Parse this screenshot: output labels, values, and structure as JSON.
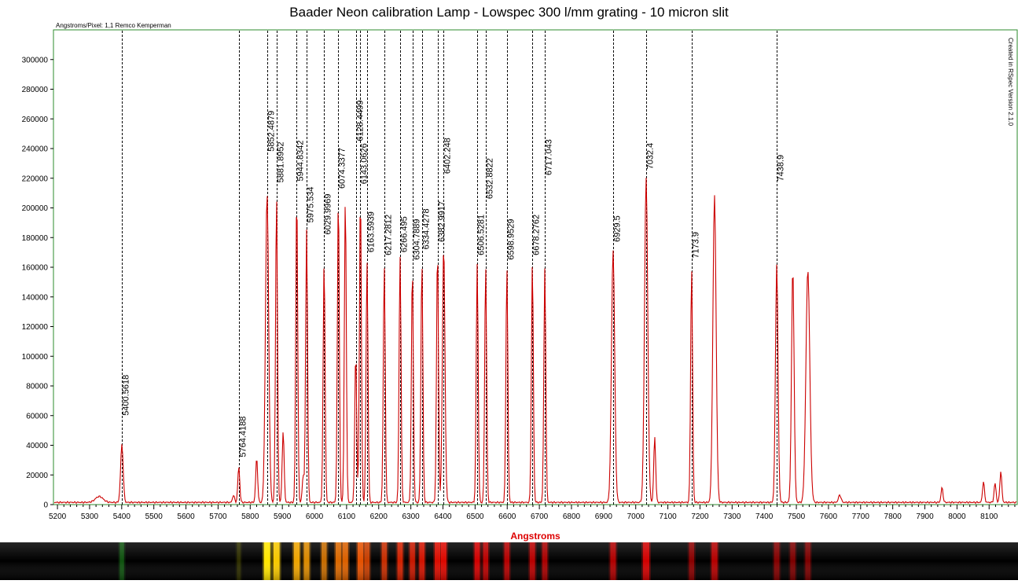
{
  "chart_data": {
    "type": "line",
    "title": "Baader Neon calibration Lamp - Lowspec 300 l/mm grating - 10 micron slit",
    "subtitle_left": "Angstroms/Pixel: 1,1 Remco Kemperman",
    "side_note": "Created in RSpec Version 2.1.0",
    "xlabel": "Angstroms",
    "ylabel": "",
    "xlim": [
      5190,
      8185
    ],
    "ylim": [
      0,
      320000
    ],
    "x_ticks": [
      5200,
      5300,
      5400,
      5500,
      5600,
      5700,
      5800,
      5900,
      6000,
      6100,
      6200,
      6300,
      6400,
      6500,
      6600,
      6700,
      6800,
      6900,
      7000,
      7100,
      7200,
      7300,
      7400,
      7500,
      7600,
      7700,
      7800,
      7900,
      8000,
      8100
    ],
    "y_ticks": [
      0,
      20000,
      40000,
      60000,
      80000,
      100000,
      120000,
      140000,
      160000,
      180000,
      200000,
      220000,
      240000,
      260000,
      280000,
      300000
    ],
    "grid": false,
    "series": [
      {
        "color": "#cc0000",
        "baseline": 1500,
        "peaks": [
          [
            5330,
            4000,
            12
          ],
          [
            5400.5618,
            39000,
            4
          ],
          [
            5748,
            5000,
            3
          ],
          [
            5764.4188,
            24000,
            3
          ],
          [
            5820.1,
            30000,
            3
          ],
          [
            5852.4879,
            208000,
            5
          ],
          [
            5881.8952,
            206000,
            3
          ],
          [
            5902.5,
            48000,
            3
          ],
          [
            5944.8342,
            208000,
            3
          ],
          [
            5965,
            18000,
            3
          ],
          [
            5975.534,
            184000,
            3
          ],
          [
            6029.9969,
            162000,
            3
          ],
          [
            6074.3377,
            206000,
            3
          ],
          [
            6096.1,
            205000,
            3
          ],
          [
            6128.4499,
            100000,
            3
          ],
          [
            6143.0626,
            208000,
            3
          ],
          [
            6163.5939,
            162000,
            3
          ],
          [
            6217.2812,
            159000,
            3
          ],
          [
            6266.495,
            166000,
            3
          ],
          [
            6304.7889,
            158000,
            3
          ],
          [
            6334.4278,
            162000,
            3
          ],
          [
            6382.9917,
            171000,
            3
          ],
          [
            6402.248,
            172000,
            4
          ],
          [
            6506.5281,
            161000,
            3
          ],
          [
            6532.8822,
            159000,
            3
          ],
          [
            6598.9529,
            158000,
            3
          ],
          [
            6678.2762,
            161000,
            3
          ],
          [
            6717.043,
            158000,
            3
          ],
          [
            6929.5,
            170000,
            5
          ],
          [
            7032.4,
            219000,
            5
          ],
          [
            7059.1,
            44000,
            3
          ],
          [
            7173.9,
            158000,
            3
          ],
          [
            7245.2,
            207000,
            5
          ],
          [
            7438.9,
            161000,
            4
          ],
          [
            7488.9,
            158000,
            4
          ],
          [
            7535.8,
            157000,
            6
          ],
          [
            7635,
            5000,
            4
          ],
          [
            7953.4,
            10000,
            3
          ],
          [
            8082.5,
            14000,
            3
          ],
          [
            8118.5,
            13000,
            3
          ],
          [
            8136.4,
            21000,
            3
          ]
        ]
      }
    ],
    "annotations": [
      {
        "x": 5400.5618,
        "label": "5400.5618",
        "y": 60000
      },
      {
        "x": 5764.4188,
        "label": "5764.4188",
        "y": 32000
      },
      {
        "x": 5852.4879,
        "label": "5852.4879",
        "y": 238000
      },
      {
        "x": 5881.8952,
        "label": "5881.8952",
        "y": 217000
      },
      {
        "x": 5944.8342,
        "label": "5944.8342",
        "y": 218000
      },
      {
        "x": 5975.534,
        "label": "5975.534",
        "y": 190000
      },
      {
        "x": 6029.9969,
        "label": "6029.9969",
        "y": 182000
      },
      {
        "x": 6074.3377,
        "label": "6074.3377",
        "y": 213000
      },
      {
        "x": 6128.4499,
        "label": "6128.4499",
        "y": 245000
      },
      {
        "x": 6143.0626,
        "label": "6143.0626",
        "y": 216000
      },
      {
        "x": 6163.5939,
        "label": "6163.5939",
        "y": 170000
      },
      {
        "x": 6217.2812,
        "label": "6217.2812",
        "y": 168000
      },
      {
        "x": 6266.495,
        "label": "6266.495",
        "y": 170000
      },
      {
        "x": 6304.7889,
        "label": "6304.7889",
        "y": 165000
      },
      {
        "x": 6334.4278,
        "label": "6334.4278",
        "y": 172000
      },
      {
        "x": 6382.9917,
        "label": "6382.9917",
        "y": 177000
      },
      {
        "x": 6402.248,
        "label": "6402.248",
        "y": 223000
      },
      {
        "x": 6506.5281,
        "label": "6506.5281",
        "y": 168000
      },
      {
        "x": 6532.8822,
        "label": "6532.8822",
        "y": 206000
      },
      {
        "x": 6598.9529,
        "label": "6598.9529",
        "y": 165000
      },
      {
        "x": 6678.2762,
        "label": "6678.2762",
        "y": 168000
      },
      {
        "x": 6717.043,
        "label": "6717.043",
        "y": 222000
      },
      {
        "x": 6929.5,
        "label": "6929.5",
        "y": 177000
      },
      {
        "x": 7032.4,
        "label": "7032.4",
        "y": 226000
      },
      {
        "x": 7173.9,
        "label": "7173.9",
        "y": 166000
      },
      {
        "x": 7438.9,
        "label": "7438.9",
        "y": 218000
      }
    ],
    "spectrum_strip": {
      "background": "#000000",
      "bands": [
        {
          "x": 5400.5618,
          "color": "#1a8a1a",
          "strength": 0.5
        },
        {
          "x": 5764.4188,
          "color": "#6a6a00",
          "strength": 0.35
        },
        {
          "x": 5852.4879,
          "color": "#ffe600",
          "strength": 1.0
        },
        {
          "x": 5881.8952,
          "color": "#ffd000",
          "strength": 0.95
        },
        {
          "x": 5944.8342,
          "color": "#ffb000",
          "strength": 0.9
        },
        {
          "x": 5975.534,
          "color": "#ffa000",
          "strength": 0.8
        },
        {
          "x": 6029.9969,
          "color": "#ff8a00",
          "strength": 0.7
        },
        {
          "x": 6074.3377,
          "color": "#ff7a00",
          "strength": 0.8
        },
        {
          "x": 6096.1,
          "color": "#ff7000",
          "strength": 0.8
        },
        {
          "x": 6143.0626,
          "color": "#ff5a00",
          "strength": 0.85
        },
        {
          "x": 6163.5939,
          "color": "#ff5000",
          "strength": 0.7
        },
        {
          "x": 6217.2812,
          "color": "#ff3a00",
          "strength": 0.7
        },
        {
          "x": 6266.495,
          "color": "#ff2a00",
          "strength": 0.75
        },
        {
          "x": 6304.7889,
          "color": "#ff2000",
          "strength": 0.7
        },
        {
          "x": 6334.4278,
          "color": "#ff1800",
          "strength": 0.75
        },
        {
          "x": 6382.9917,
          "color": "#ff1000",
          "strength": 0.8
        },
        {
          "x": 6402.248,
          "color": "#ff0a00",
          "strength": 0.8
        },
        {
          "x": 6506.5281,
          "color": "#ff0000",
          "strength": 0.75
        },
        {
          "x": 6532.8822,
          "color": "#f00000",
          "strength": 0.7
        },
        {
          "x": 6598.9529,
          "color": "#e80000",
          "strength": 0.7
        },
        {
          "x": 6678.2762,
          "color": "#e00000",
          "strength": 0.75
        },
        {
          "x": 6717.043,
          "color": "#d80000",
          "strength": 0.7
        },
        {
          "x": 6929.5,
          "color": "#cc0000",
          "strength": 0.8
        },
        {
          "x": 7032.4,
          "color": "#d00000",
          "strength": 1.0
        },
        {
          "x": 7173.9,
          "color": "#b00000",
          "strength": 0.7
        },
        {
          "x": 7245.2,
          "color": "#c00000",
          "strength": 0.9
        },
        {
          "x": 7438.9,
          "color": "#a00000",
          "strength": 0.75
        },
        {
          "x": 7488.9,
          "color": "#a00000",
          "strength": 0.7
        },
        {
          "x": 7535.8,
          "color": "#a00000",
          "strength": 0.7
        }
      ]
    },
    "colors": {
      "frame": "#2e8b2e",
      "line": "#cc0000",
      "xlabel": "#dd0000",
      "annotation_line": "#000000"
    }
  }
}
